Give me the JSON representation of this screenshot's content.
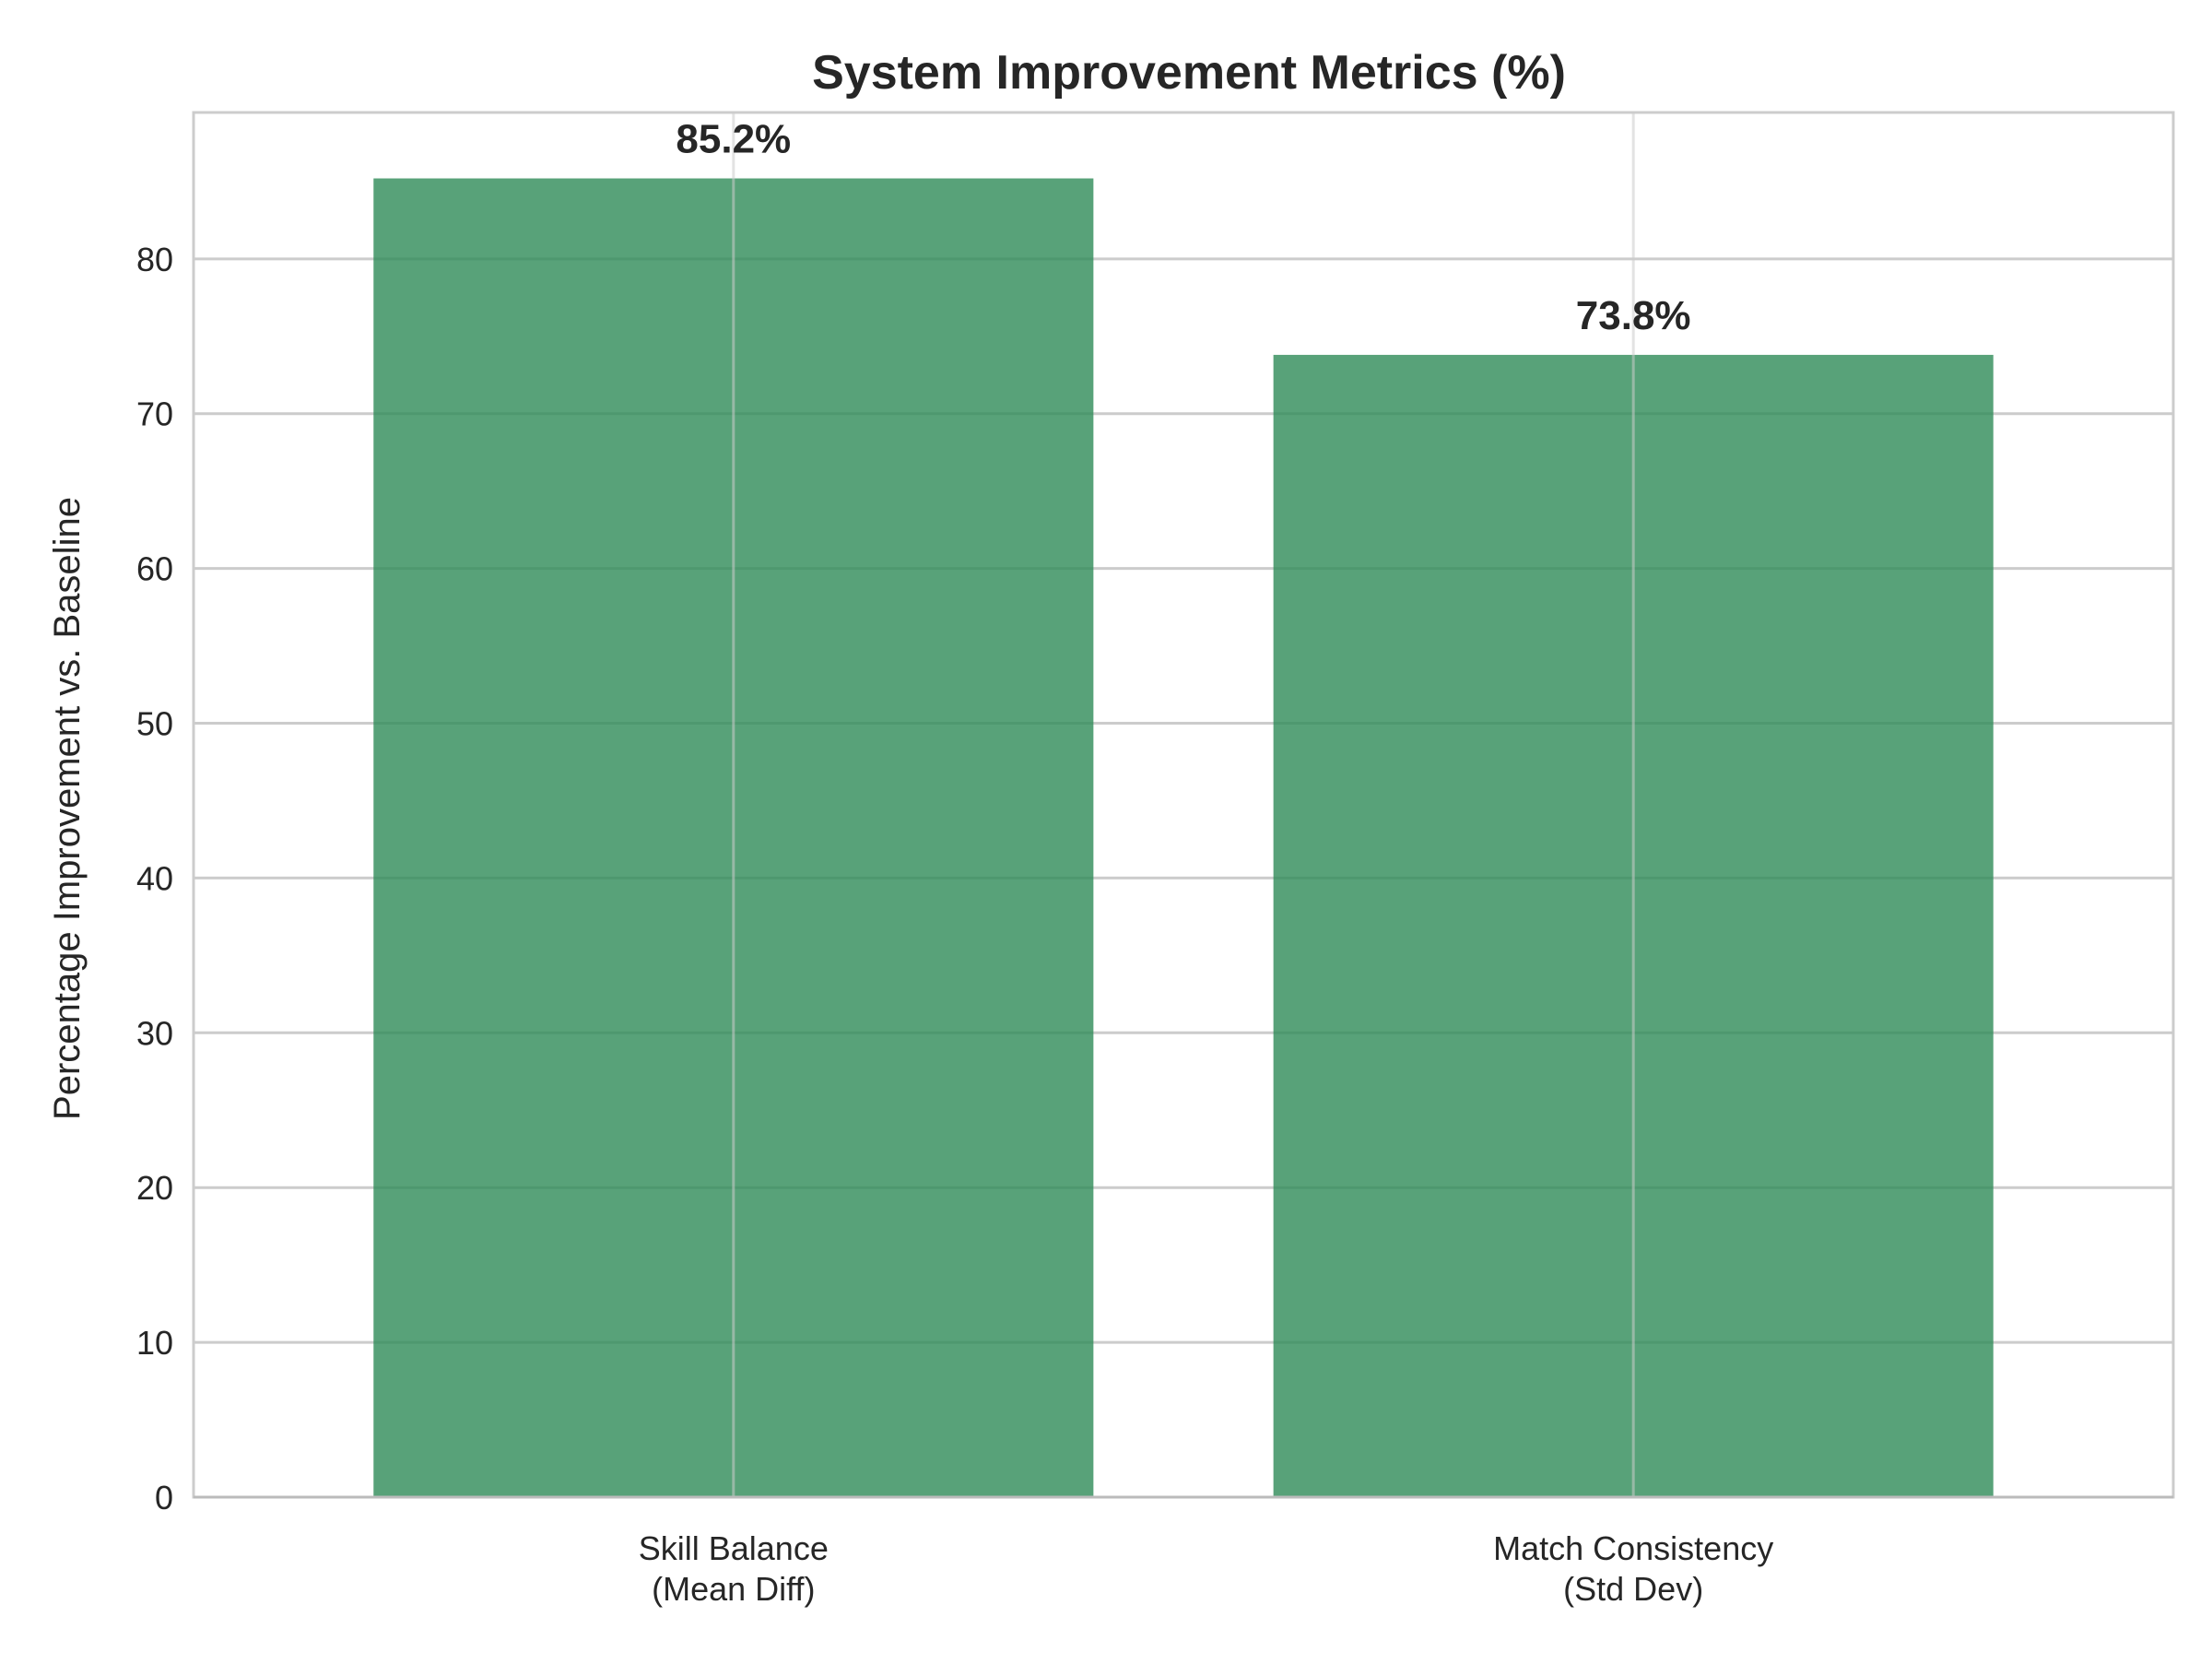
{
  "chart_data": {
    "type": "bar",
    "title": "System Improvement Metrics (%)",
    "xlabel": "",
    "ylabel": "Percentage Improvement vs. Baseline",
    "categories": [
      [
        "Skill Balance",
        "(Mean Diff)"
      ],
      [
        "Match Consistency",
        "(Std Dev)"
      ]
    ],
    "values": [
      85.2,
      73.8
    ],
    "data_labels": [
      "85.2%",
      "73.8%"
    ],
    "ylim": [
      0,
      89.46
    ],
    "yticks": [
      0,
      10,
      20,
      30,
      40,
      50,
      60,
      70,
      80
    ],
    "grid": true,
    "legend": "none",
    "colors": {
      "bar": "#2e8b57",
      "bar_opacity": 0.8,
      "grid": "#cccccc",
      "frame": "#cccccc",
      "text": "#262626"
    }
  }
}
